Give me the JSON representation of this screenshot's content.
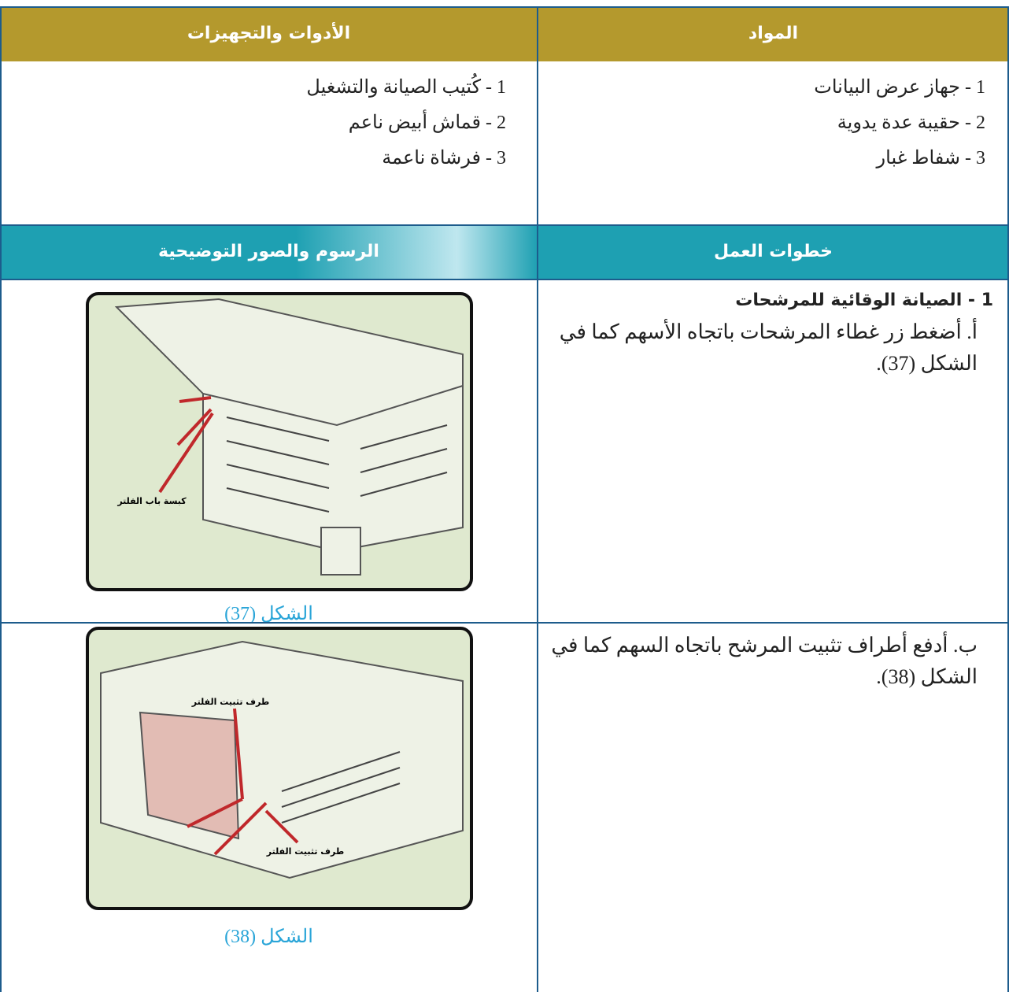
{
  "header": {
    "materials": "المواد",
    "tools": "الأدوات والتجهيزات"
  },
  "materials": [
    "1 - جهاز عرض البيانات",
    "2 - حقيبة عدة يدوية",
    "3 - شفاط غبار"
  ],
  "tools": [
    "1 - كُتيب الصيانة والتشغيل",
    "2 - قماش أبيض ناعم",
    "3 - فرشاة ناعمة"
  ],
  "section_header": {
    "steps": "خطوات العمل",
    "figures": "الرسوم والصور التوضيحية"
  },
  "steps": [
    {
      "title": "1 - الصيانة الوقائية للمرشحات",
      "text": "أ. أضغط زر غطاء المرشحات باتجاه الأسهم كما في الشكل (37).",
      "figure": {
        "caption": "الشكل (37)",
        "labels": [
          "كبسة باب الفلتر"
        ]
      }
    },
    {
      "text": "ب. أدفع أطراف تثبيت المرشح باتجاه السهم كما في الشكل (38).",
      "figure": {
        "caption": "الشكل (38)",
        "labels": [
          "طرف تثبيت الفلتر",
          "طرف تثبيت الفلتر"
        ]
      }
    }
  ]
}
